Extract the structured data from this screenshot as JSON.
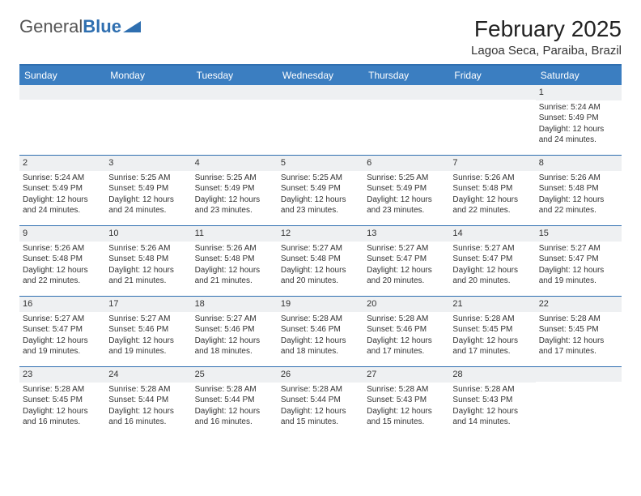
{
  "logo": {
    "text1": "General",
    "text2": "Blue"
  },
  "title": "February 2025",
  "location": "Lagoa Seca, Paraiba, Brazil",
  "day_headers": [
    "Sunday",
    "Monday",
    "Tuesday",
    "Wednesday",
    "Thursday",
    "Friday",
    "Saturday"
  ],
  "colors": {
    "header_bg": "#3b7ec1",
    "header_border": "#2f6fb0",
    "day_number_bg": "#eef0f2",
    "text": "#333333"
  },
  "weeks": [
    [
      null,
      null,
      null,
      null,
      null,
      null,
      {
        "n": "1",
        "sr": "Sunrise: 5:24 AM",
        "ss": "Sunset: 5:49 PM",
        "dl": "Daylight: 12 hours and 24 minutes."
      }
    ],
    [
      {
        "n": "2",
        "sr": "Sunrise: 5:24 AM",
        "ss": "Sunset: 5:49 PM",
        "dl": "Daylight: 12 hours and 24 minutes."
      },
      {
        "n": "3",
        "sr": "Sunrise: 5:25 AM",
        "ss": "Sunset: 5:49 PM",
        "dl": "Daylight: 12 hours and 24 minutes."
      },
      {
        "n": "4",
        "sr": "Sunrise: 5:25 AM",
        "ss": "Sunset: 5:49 PM",
        "dl": "Daylight: 12 hours and 23 minutes."
      },
      {
        "n": "5",
        "sr": "Sunrise: 5:25 AM",
        "ss": "Sunset: 5:49 PM",
        "dl": "Daylight: 12 hours and 23 minutes."
      },
      {
        "n": "6",
        "sr": "Sunrise: 5:25 AM",
        "ss": "Sunset: 5:49 PM",
        "dl": "Daylight: 12 hours and 23 minutes."
      },
      {
        "n": "7",
        "sr": "Sunrise: 5:26 AM",
        "ss": "Sunset: 5:48 PM",
        "dl": "Daylight: 12 hours and 22 minutes."
      },
      {
        "n": "8",
        "sr": "Sunrise: 5:26 AM",
        "ss": "Sunset: 5:48 PM",
        "dl": "Daylight: 12 hours and 22 minutes."
      }
    ],
    [
      {
        "n": "9",
        "sr": "Sunrise: 5:26 AM",
        "ss": "Sunset: 5:48 PM",
        "dl": "Daylight: 12 hours and 22 minutes."
      },
      {
        "n": "10",
        "sr": "Sunrise: 5:26 AM",
        "ss": "Sunset: 5:48 PM",
        "dl": "Daylight: 12 hours and 21 minutes."
      },
      {
        "n": "11",
        "sr": "Sunrise: 5:26 AM",
        "ss": "Sunset: 5:48 PM",
        "dl": "Daylight: 12 hours and 21 minutes."
      },
      {
        "n": "12",
        "sr": "Sunrise: 5:27 AM",
        "ss": "Sunset: 5:48 PM",
        "dl": "Daylight: 12 hours and 20 minutes."
      },
      {
        "n": "13",
        "sr": "Sunrise: 5:27 AM",
        "ss": "Sunset: 5:47 PM",
        "dl": "Daylight: 12 hours and 20 minutes."
      },
      {
        "n": "14",
        "sr": "Sunrise: 5:27 AM",
        "ss": "Sunset: 5:47 PM",
        "dl": "Daylight: 12 hours and 20 minutes."
      },
      {
        "n": "15",
        "sr": "Sunrise: 5:27 AM",
        "ss": "Sunset: 5:47 PM",
        "dl": "Daylight: 12 hours and 19 minutes."
      }
    ],
    [
      {
        "n": "16",
        "sr": "Sunrise: 5:27 AM",
        "ss": "Sunset: 5:47 PM",
        "dl": "Daylight: 12 hours and 19 minutes."
      },
      {
        "n": "17",
        "sr": "Sunrise: 5:27 AM",
        "ss": "Sunset: 5:46 PM",
        "dl": "Daylight: 12 hours and 19 minutes."
      },
      {
        "n": "18",
        "sr": "Sunrise: 5:27 AM",
        "ss": "Sunset: 5:46 PM",
        "dl": "Daylight: 12 hours and 18 minutes."
      },
      {
        "n": "19",
        "sr": "Sunrise: 5:28 AM",
        "ss": "Sunset: 5:46 PM",
        "dl": "Daylight: 12 hours and 18 minutes."
      },
      {
        "n": "20",
        "sr": "Sunrise: 5:28 AM",
        "ss": "Sunset: 5:46 PM",
        "dl": "Daylight: 12 hours and 17 minutes."
      },
      {
        "n": "21",
        "sr": "Sunrise: 5:28 AM",
        "ss": "Sunset: 5:45 PM",
        "dl": "Daylight: 12 hours and 17 minutes."
      },
      {
        "n": "22",
        "sr": "Sunrise: 5:28 AM",
        "ss": "Sunset: 5:45 PM",
        "dl": "Daylight: 12 hours and 17 minutes."
      }
    ],
    [
      {
        "n": "23",
        "sr": "Sunrise: 5:28 AM",
        "ss": "Sunset: 5:45 PM",
        "dl": "Daylight: 12 hours and 16 minutes."
      },
      {
        "n": "24",
        "sr": "Sunrise: 5:28 AM",
        "ss": "Sunset: 5:44 PM",
        "dl": "Daylight: 12 hours and 16 minutes."
      },
      {
        "n": "25",
        "sr": "Sunrise: 5:28 AM",
        "ss": "Sunset: 5:44 PM",
        "dl": "Daylight: 12 hours and 16 minutes."
      },
      {
        "n": "26",
        "sr": "Sunrise: 5:28 AM",
        "ss": "Sunset: 5:44 PM",
        "dl": "Daylight: 12 hours and 15 minutes."
      },
      {
        "n": "27",
        "sr": "Sunrise: 5:28 AM",
        "ss": "Sunset: 5:43 PM",
        "dl": "Daylight: 12 hours and 15 minutes."
      },
      {
        "n": "28",
        "sr": "Sunrise: 5:28 AM",
        "ss": "Sunset: 5:43 PM",
        "dl": "Daylight: 12 hours and 14 minutes."
      },
      null
    ]
  ]
}
